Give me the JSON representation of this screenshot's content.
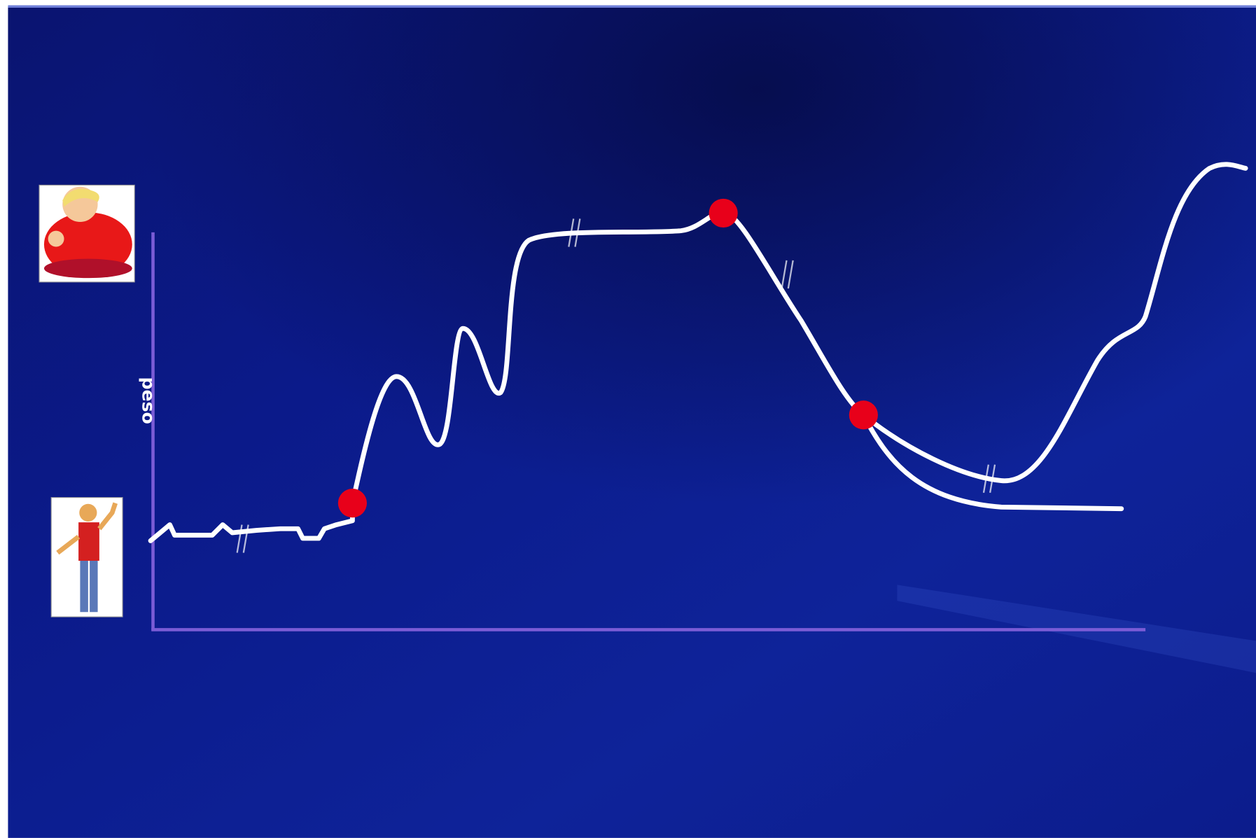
{
  "axis_label": "peso"
}
